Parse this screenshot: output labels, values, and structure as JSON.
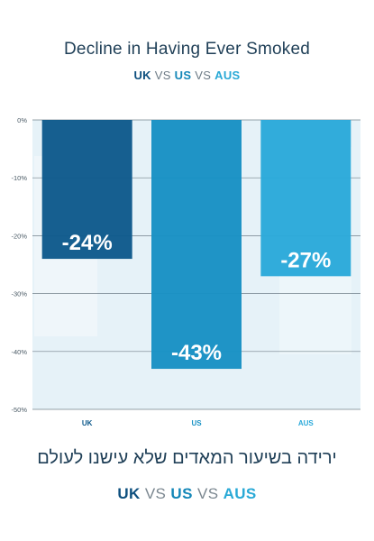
{
  "title": "Decline in Having Ever Smoked",
  "comparison": {
    "a": "UK",
    "vs1": "VS",
    "b": "US",
    "vs2": "VS",
    "c": "AUS"
  },
  "hebrew_caption": "ירידה בשיעור המאדים שלא עישנו לעולם",
  "bottom_comparison": {
    "a": "UK",
    "vs1": "VS",
    "b": "US",
    "vs2": "VS",
    "c": "AUS"
  },
  "colors": {
    "uk": "#0e5a8c",
    "us": "#1891c4",
    "aus": "#2aa9da",
    "title": "#1f3f57",
    "plot_bg": "#e6f2f8",
    "grid": "#4b5b66"
  },
  "chart_data": {
    "type": "bar",
    "categories": [
      "UK",
      "US",
      "AUS"
    ],
    "values": [
      -24,
      -43,
      -27
    ],
    "data_labels": [
      "-24%",
      "-43%",
      "-27%"
    ],
    "ylim": [
      -50,
      0
    ],
    "yticks": [
      0,
      -10,
      -20,
      -30,
      -40,
      -50
    ],
    "ytick_labels": [
      "0%",
      "-10%",
      "-20%",
      "-30%",
      "-40%",
      "-50%"
    ],
    "grid": true
  }
}
